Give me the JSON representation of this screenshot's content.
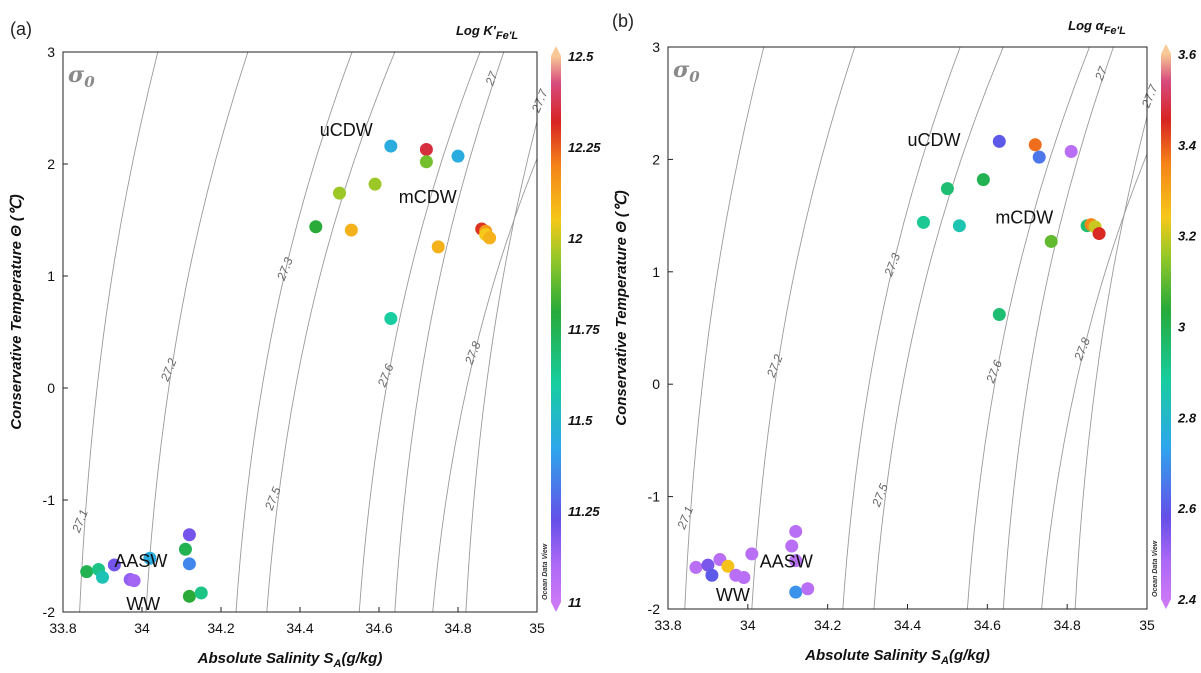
{
  "chart_data": [
    {
      "type": "scatter",
      "panel_label": "(a)",
      "xlabel": "Absolute Salinity S",
      "xlabel_sub": "A",
      "xlabel_unit": "(g/kg)",
      "ylabel": "Conservative Temperature Θ (℃)",
      "xlim": [
        33.8,
        35
      ],
      "ylim": [
        -2,
        3
      ],
      "x_ticks": [
        "33.8",
        "34",
        "34.2",
        "34.4",
        "34.6",
        "34.8",
        "35"
      ],
      "y_ticks": [
        "3",
        "2",
        "1",
        "0",
        "-1",
        "-2"
      ],
      "sigma_label": "σ",
      "sigma_sub": "0",
      "colorbar": {
        "title": "Log K'",
        "title_sub": "Fe'L",
        "range": [
          11,
          12.5
        ],
        "tick_labels": [
          "12.5",
          "12.25",
          "12",
          "11.75",
          "11.5",
          "11.25",
          "11"
        ],
        "credit": "Ocean Data View"
      },
      "density_contours": [
        "27.1",
        "27.2",
        "27.3",
        "27.5",
        "27.6",
        "27",
        "27.7",
        "27.8"
      ],
      "water_mass_labels": [
        "uCDW",
        "mCDW",
        "AASW",
        "WW"
      ],
      "points": [
        {
          "x": 34.63,
          "y": 2.16,
          "c": 11.45
        },
        {
          "x": 34.72,
          "y": 2.13,
          "c": 12.35
        },
        {
          "x": 34.72,
          "y": 2.02,
          "c": 11.9
        },
        {
          "x": 34.8,
          "y": 2.07,
          "c": 11.45
        },
        {
          "x": 34.5,
          "y": 1.74,
          "c": 11.95
        },
        {
          "x": 34.59,
          "y": 1.82,
          "c": 11.95
        },
        {
          "x": 34.44,
          "y": 1.44,
          "c": 11.8
        },
        {
          "x": 34.53,
          "y": 1.41,
          "c": 12.1
        },
        {
          "x": 34.75,
          "y": 1.26,
          "c": 12.1
        },
        {
          "x": 34.86,
          "y": 1.42,
          "c": 12.3
        },
        {
          "x": 34.87,
          "y": 1.4,
          "c": 12.15
        },
        {
          "x": 34.87,
          "y": 1.37,
          "c": 12.05
        },
        {
          "x": 34.88,
          "y": 1.34,
          "c": 12.1
        },
        {
          "x": 34.63,
          "y": 0.62,
          "c": 11.6
        },
        {
          "x": 34.12,
          "y": -1.31,
          "c": 11.2
        },
        {
          "x": 34.11,
          "y": -1.44,
          "c": 11.75
        },
        {
          "x": 34.12,
          "y": -1.57,
          "c": 11.35
        },
        {
          "x": 34.02,
          "y": -1.52,
          "c": 11.45
        },
        {
          "x": 33.93,
          "y": -1.58,
          "c": 11.2
        },
        {
          "x": 33.86,
          "y": -1.64,
          "c": 11.75
        },
        {
          "x": 33.89,
          "y": -1.62,
          "c": 11.65
        },
        {
          "x": 33.9,
          "y": -1.69,
          "c": 11.55
        },
        {
          "x": 33.97,
          "y": -1.71,
          "c": 11.15
        },
        {
          "x": 33.98,
          "y": -1.72,
          "c": 11.12
        },
        {
          "x": 34.12,
          "y": -1.86,
          "c": 11.8
        },
        {
          "x": 34.15,
          "y": -1.83,
          "c": 11.65
        }
      ]
    },
    {
      "type": "scatter",
      "panel_label": "(b)",
      "xlabel": "Absolute Salinity S",
      "xlabel_sub": "A",
      "xlabel_unit": "(g/kg)",
      "ylabel": "Conservative Temperature Θ (℃)",
      "xlim": [
        33.8,
        35
      ],
      "ylim": [
        -2,
        3
      ],
      "x_ticks": [
        "33.8",
        "34",
        "34.2",
        "34.4",
        "34.6",
        "34.8",
        "35"
      ],
      "y_ticks": [
        "3",
        "2",
        "1",
        "0",
        "-1",
        "-2"
      ],
      "sigma_label": "σ",
      "sigma_sub": "0",
      "colorbar": {
        "title": "Log α",
        "title_sub": "Fe'L",
        "range": [
          2.4,
          3.6
        ],
        "tick_labels": [
          "3.6",
          "3.4",
          "3.2",
          "3",
          "2.8",
          "2.6",
          "2.4"
        ],
        "credit": "Ocean Data View"
      },
      "density_contours": [
        "27.1",
        "27.2",
        "27.3",
        "27.5",
        "27.6",
        "27",
        "27.7",
        "27.8"
      ],
      "water_mass_labels": [
        "uCDW",
        "mCDW",
        "AASW",
        "WW"
      ],
      "points": [
        {
          "x": 34.63,
          "y": 2.16,
          "c": 2.6
        },
        {
          "x": 34.73,
          "y": 2.02,
          "c": 2.65
        },
        {
          "x": 34.72,
          "y": 2.13,
          "c": 3.38
        },
        {
          "x": 34.81,
          "y": 2.07,
          "c": 2.45
        },
        {
          "x": 34.5,
          "y": 1.74,
          "c": 2.95
        },
        {
          "x": 34.59,
          "y": 1.82,
          "c": 3.0
        },
        {
          "x": 34.44,
          "y": 1.44,
          "c": 2.9
        },
        {
          "x": 34.53,
          "y": 1.41,
          "c": 2.85
        },
        {
          "x": 34.76,
          "y": 1.27,
          "c": 3.1
        },
        {
          "x": 34.85,
          "y": 1.41,
          "c": 2.95
        },
        {
          "x": 34.86,
          "y": 1.42,
          "c": 3.35
        },
        {
          "x": 34.87,
          "y": 1.4,
          "c": 3.2
        },
        {
          "x": 34.88,
          "y": 1.34,
          "c": 3.45
        },
        {
          "x": 34.63,
          "y": 0.62,
          "c": 2.95
        },
        {
          "x": 34.12,
          "y": -1.31,
          "c": 2.45
        },
        {
          "x": 34.11,
          "y": -1.44,
          "c": 2.45
        },
        {
          "x": 34.12,
          "y": -1.57,
          "c": 2.45
        },
        {
          "x": 34.01,
          "y": -1.51,
          "c": 2.45
        },
        {
          "x": 33.93,
          "y": -1.56,
          "c": 2.45
        },
        {
          "x": 33.87,
          "y": -1.63,
          "c": 2.45
        },
        {
          "x": 33.9,
          "y": -1.61,
          "c": 2.55
        },
        {
          "x": 33.91,
          "y": -1.7,
          "c": 2.6
        },
        {
          "x": 33.95,
          "y": -1.62,
          "c": 3.25
        },
        {
          "x": 33.97,
          "y": -1.7,
          "c": 2.45
        },
        {
          "x": 33.99,
          "y": -1.72,
          "c": 2.45
        },
        {
          "x": 34.12,
          "y": -1.85,
          "c": 2.7
        },
        {
          "x": 34.15,
          "y": -1.82,
          "c": 2.45
        }
      ]
    }
  ]
}
